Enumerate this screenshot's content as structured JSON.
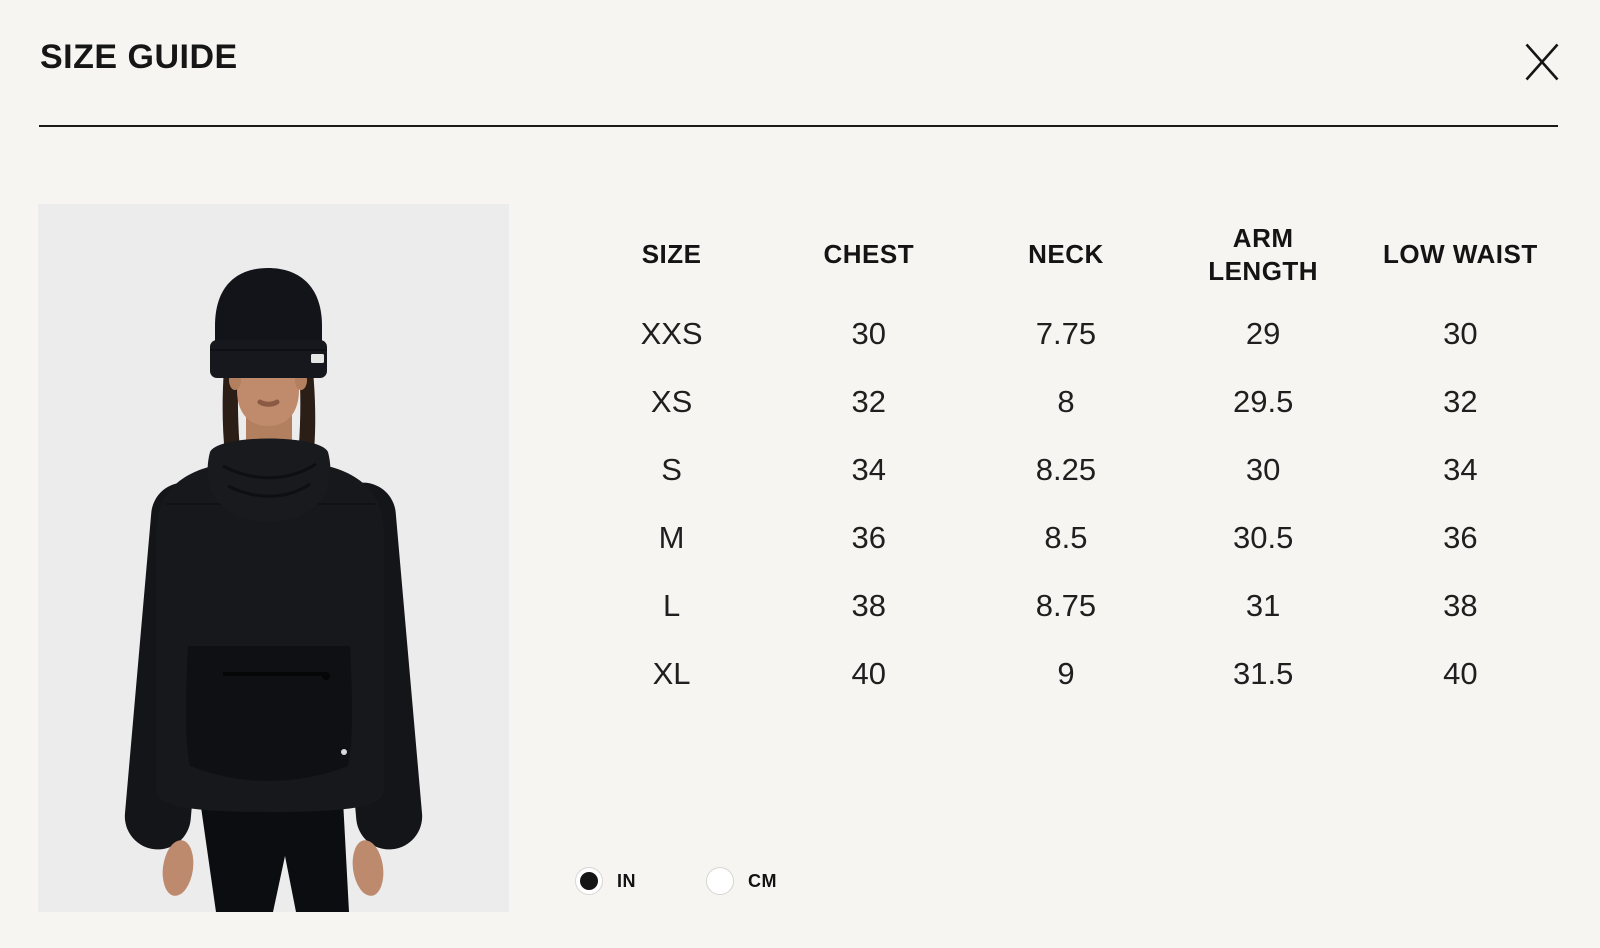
{
  "modal": {
    "title": "SIZE GUIDE",
    "close_label": "Close"
  },
  "image": {
    "alt": "Model wearing a black beanie and black funnel-neck pullover with zip kangaroo pocket",
    "bg_color": "#ececed"
  },
  "size_table": {
    "columns": [
      "SIZE",
      "CHEST",
      "NECK",
      "ARM\nLENGTH",
      "LOW WAIST"
    ],
    "rows": [
      [
        "XXS",
        "30",
        "7.75",
        "29",
        "30"
      ],
      [
        "XS",
        "32",
        "8",
        "29.5",
        "32"
      ],
      [
        "S",
        "34",
        "8.25",
        "30",
        "34"
      ],
      [
        "M",
        "36",
        "8.5",
        "30.5",
        "36"
      ],
      [
        "L",
        "38",
        "8.75",
        "31",
        "38"
      ],
      [
        "XL",
        "40",
        "9",
        "31.5",
        "40"
      ]
    ]
  },
  "units": {
    "options": [
      {
        "id": "in",
        "label": "IN",
        "selected": true
      },
      {
        "id": "cm",
        "label": "CM",
        "selected": false
      }
    ]
  },
  "colors": {
    "page_bg": "#f6f5f2",
    "text": "#1a1a1a",
    "divider": "#1a1a18",
    "image_bg": "#ececed",
    "radio_border": "#d8d6d2",
    "radio_selected_fill": "#151515"
  }
}
